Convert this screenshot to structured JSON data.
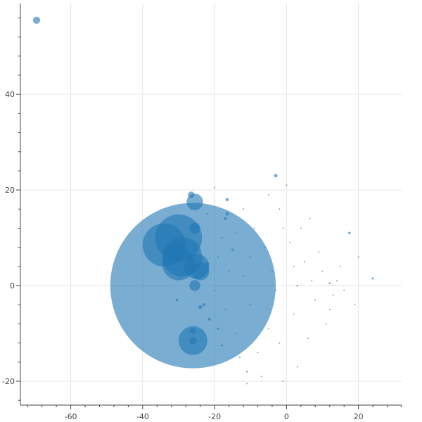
{
  "chart_data": {
    "type": "scatter",
    "title": "",
    "xlabel": "",
    "ylabel": "",
    "xlim": [
      -74,
      32
    ],
    "ylim": [
      -25,
      59
    ],
    "x_ticks": [
      -60,
      -40,
      -20,
      0,
      20
    ],
    "y_ticks": [
      -20,
      0,
      20,
      40
    ],
    "x_tick_labels": [
      "-60",
      "-40",
      "-20",
      "0",
      "20"
    ],
    "y_tick_labels": [
      "-20",
      "0",
      "20",
      "40"
    ],
    "grid": true,
    "legend": "none",
    "series": [
      {
        "color": "#1f77b4",
        "opacity": 0.6,
        "points": [
          {
            "x": -26,
            "y": 0,
            "r": 23
          },
          {
            "x": -30,
            "y": 10,
            "r": 6.5
          },
          {
            "x": -34,
            "y": 8.5,
            "r": 6
          },
          {
            "x": -29,
            "y": 6,
            "r": 5.5
          },
          {
            "x": -30,
            "y": 4.5,
            "r": 4.5
          },
          {
            "x": -25,
            "y": 4,
            "r": 3.5
          },
          {
            "x": -24,
            "y": 3,
            "r": 2.5
          },
          {
            "x": -31,
            "y": 7,
            "r": 2.5
          },
          {
            "x": -26,
            "y": -11.5,
            "r": 4
          },
          {
            "x": -26,
            "y": -11.5,
            "r": 1
          },
          {
            "x": -26,
            "y": -9.5,
            "r": 0.8
          },
          {
            "x": -25.5,
            "y": 17.5,
            "r": 2.3
          },
          {
            "x": -26.5,
            "y": 19,
            "r": 0.9
          },
          {
            "x": -25.5,
            "y": 12,
            "r": 1.5
          },
          {
            "x": -25.5,
            "y": 0,
            "r": 1.5
          },
          {
            "x": -69.5,
            "y": 55.5,
            "r": 1.0
          },
          {
            "x": -3,
            "y": 23,
            "r": 0.5
          },
          {
            "x": -16.5,
            "y": 18,
            "r": 0.45
          },
          {
            "x": -16.5,
            "y": 15,
            "r": 0.45
          },
          {
            "x": -17,
            "y": 14,
            "r": 0.4
          },
          {
            "x": -15,
            "y": 7.5,
            "r": 0.3
          },
          {
            "x": -22,
            "y": 4.5,
            "r": 0.5
          },
          {
            "x": -24,
            "y": -4.5,
            "r": 0.5
          },
          {
            "x": -23,
            "y": -4,
            "r": 0.4
          },
          {
            "x": -21.5,
            "y": -7,
            "r": 0.4
          },
          {
            "x": -30.5,
            "y": -3,
            "r": 0.35
          },
          {
            "x": -19,
            "y": -9,
            "r": 0.3
          },
          {
            "x": -18,
            "y": -12.5,
            "r": 0.3
          },
          {
            "x": -11,
            "y": -18,
            "r": 0.25
          },
          {
            "x": 17.5,
            "y": 11,
            "r": 0.35
          },
          {
            "x": 24,
            "y": 1.5,
            "r": 0.3
          },
          {
            "x": 3,
            "y": 0,
            "r": 0.25
          },
          {
            "x": -2,
            "y": -12,
            "r": 0.2
          },
          {
            "x": 3,
            "y": -17,
            "r": 0.2
          },
          {
            "x": 12,
            "y": 0.5,
            "r": 0.25
          },
          {
            "x": 6.5,
            "y": 14,
            "r": 0.2
          },
          {
            "x": -20,
            "y": 20.5,
            "r": 0.2
          },
          {
            "x": -18,
            "y": 10,
            "r": 0.2
          },
          {
            "x": -14,
            "y": 11,
            "r": 0.2
          },
          {
            "x": -12,
            "y": 2,
            "r": 0.2
          },
          {
            "x": -10,
            "y": -4,
            "r": 0.2
          },
          {
            "x": -8,
            "y": -14,
            "r": 0.2
          },
          {
            "x": -6,
            "y": 8,
            "r": 0.2
          },
          {
            "x": -4,
            "y": 3,
            "r": 0.2
          },
          {
            "x": -2,
            "y": 16,
            "r": 0.2
          },
          {
            "x": 1,
            "y": 9,
            "r": 0.2
          },
          {
            "x": 2,
            "y": -6,
            "r": 0.2
          },
          {
            "x": 5,
            "y": 5,
            "r": 0.2
          },
          {
            "x": 8,
            "y": -3,
            "r": 0.2
          },
          {
            "x": 10,
            "y": 3,
            "r": 0.2
          },
          {
            "x": 13,
            "y": -2,
            "r": 0.2
          },
          {
            "x": 14,
            "y": 1,
            "r": 0.2
          },
          {
            "x": 16,
            "y": -1,
            "r": 0.2
          },
          {
            "x": -16,
            "y": 3,
            "r": 0.2
          },
          {
            "x": -20,
            "y": -1,
            "r": 0.2
          },
          {
            "x": -14,
            "y": -10,
            "r": 0.2
          },
          {
            "x": -12,
            "y": 16,
            "r": 0.2
          },
          {
            "x": -9,
            "y": 12,
            "r": 0.2
          },
          {
            "x": -5,
            "y": -9,
            "r": 0.2
          },
          {
            "x": 0,
            "y": 21,
            "r": 0.2
          },
          {
            "x": 4,
            "y": 12,
            "r": 0.2
          },
          {
            "x": 9,
            "y": 7,
            "r": 0.2
          },
          {
            "x": 11,
            "y": -8,
            "r": 0.2
          },
          {
            "x": 15,
            "y": 4,
            "r": 0.2
          },
          {
            "x": 19,
            "y": -4,
            "r": 0.2
          },
          {
            "x": 20,
            "y": 6,
            "r": 0.2
          },
          {
            "x": -7,
            "y": -19,
            "r": 0.2
          },
          {
            "x": -11,
            "y": -20.5,
            "r": 0.2
          },
          {
            "x": -1,
            "y": -20,
            "r": 0.2
          },
          {
            "x": 6,
            "y": -11,
            "r": 0.2
          },
          {
            "x": -22,
            "y": 15,
            "r": 0.2
          },
          {
            "x": -19,
            "y": 6,
            "r": 0.2
          },
          {
            "x": -17,
            "y": -5,
            "r": 0.2
          },
          {
            "x": -13,
            "y": -15,
            "r": 0.2
          },
          {
            "x": -10,
            "y": 6,
            "r": 0.2
          },
          {
            "x": -3,
            "y": -1,
            "r": 0.2
          },
          {
            "x": 2,
            "y": 4,
            "r": 0.2
          },
          {
            "x": 7,
            "y": 1,
            "r": 0.2
          },
          {
            "x": 12,
            "y": -5,
            "r": 0.2
          },
          {
            "x": -1,
            "y": 12,
            "r": 0.2
          },
          {
            "x": -5,
            "y": 19,
            "r": 0.2
          }
        ]
      }
    ]
  }
}
